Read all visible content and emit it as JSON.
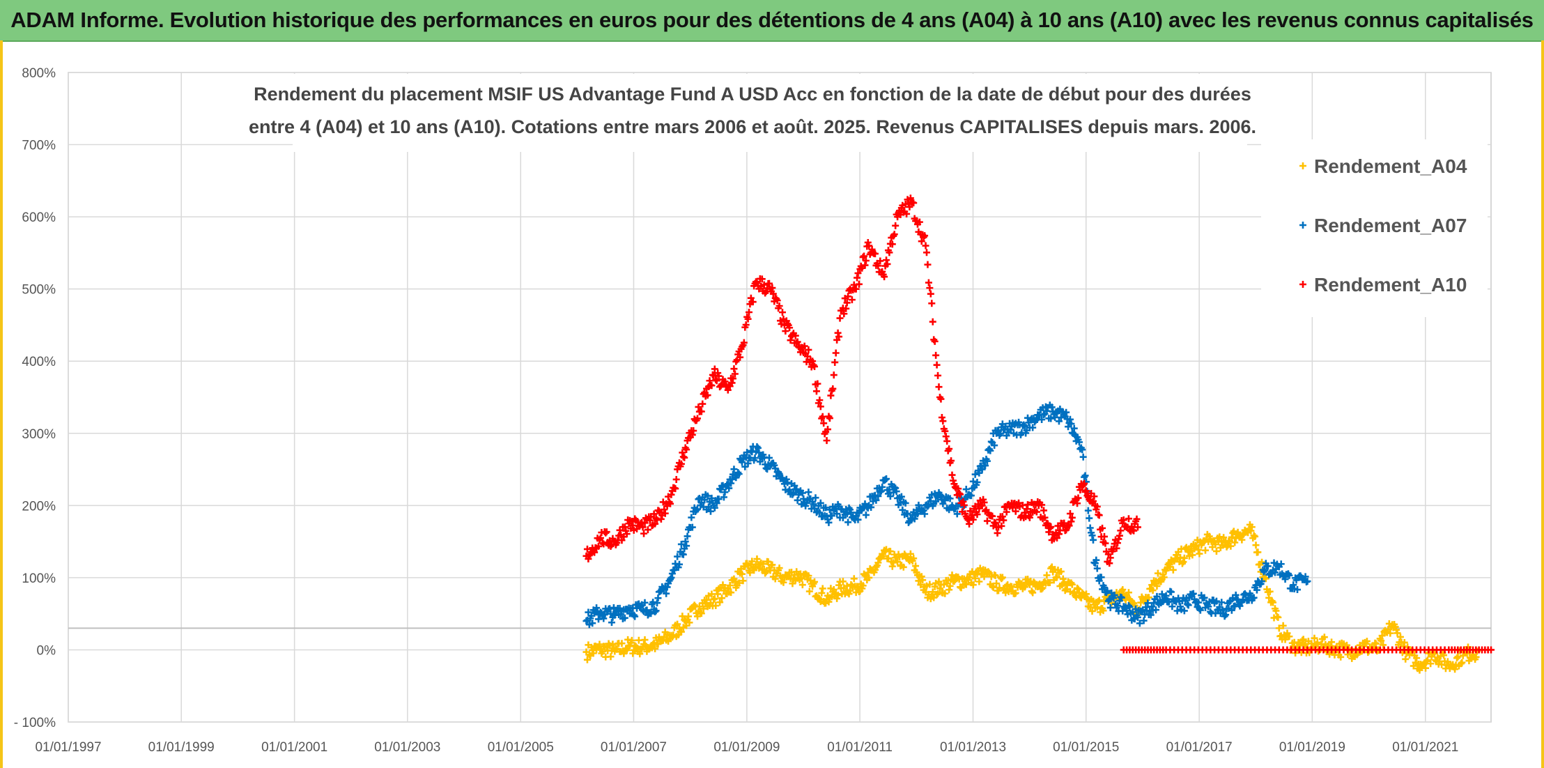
{
  "banner": {
    "title": "ADAM Informe. Evolution historique des performances en euros pour des détentions de 4 ans (A04) à 10 ans (A10) avec les revenus connus capitalisés"
  },
  "colors": {
    "banner_bg": "#7fc97f",
    "A04": "#ffc000",
    "A07": "#0070c0",
    "A10": "#ff0000",
    "grid": "#d9d9d9"
  },
  "chart_data": {
    "type": "scatter",
    "title_lines": [
      "Rendement du placement MSIF US Advantage Fund A USD Acc en fonction de la date de début pour des durées",
      "entre 4 (A04) et 10 ans (A10). Cotations entre mars 2006 et août. 2025. Revenus CAPITALISES depuis mars. 2006."
    ],
    "xlabel": "",
    "ylabel": "",
    "x_axis_type": "date",
    "x_range": [
      "1997-01-01",
      "2022-03-01"
    ],
    "x_tick_labels": [
      "01/01/1997",
      "01/01/1999",
      "01/01/2001",
      "01/01/2003",
      "01/01/2005",
      "01/01/2007",
      "01/01/2009",
      "01/01/2011",
      "01/01/2013",
      "01/01/2015",
      "01/01/2017",
      "01/01/2019",
      "01/01/2021"
    ],
    "y_range": [
      -100,
      800
    ],
    "y_unit": "%",
    "y_tick_labels": [
      "- 100%",
      "0%",
      "100%",
      "200%",
      "300%",
      "400%",
      "500%",
      "600%",
      "700%",
      "800%"
    ],
    "grid": true,
    "legend_position": "top-right",
    "legend": [
      "Rendement_A04",
      "Rendement_A07",
      "Rendement_A10"
    ],
    "marker": "+",
    "series": [
      {
        "name": "Rendement_A04",
        "color": "#ffc000",
        "points": [
          [
            "2006-03-01",
            -3
          ],
          [
            "2006-06-01",
            1
          ],
          [
            "2006-09-01",
            -2
          ],
          [
            "2006-12-01",
            5
          ],
          [
            "2007-03-01",
            4
          ],
          [
            "2007-06-01",
            8
          ],
          [
            "2007-09-01",
            20
          ],
          [
            "2007-12-01",
            40
          ],
          [
            "2008-03-01",
            60
          ],
          [
            "2008-06-01",
            70
          ],
          [
            "2008-09-01",
            85
          ],
          [
            "2008-12-01",
            105
          ],
          [
            "2009-03-01",
            118
          ],
          [
            "2009-06-01",
            110
          ],
          [
            "2009-09-01",
            100
          ],
          [
            "2009-12-01",
            104
          ],
          [
            "2010-03-01",
            88
          ],
          [
            "2010-06-01",
            70
          ],
          [
            "2010-09-01",
            85
          ],
          [
            "2010-12-01",
            88
          ],
          [
            "2011-03-01",
            100
          ],
          [
            "2011-06-01",
            130
          ],
          [
            "2011-09-01",
            122
          ],
          [
            "2011-12-01",
            125
          ],
          [
            "2012-03-01",
            80
          ],
          [
            "2012-06-01",
            85
          ],
          [
            "2012-09-01",
            95
          ],
          [
            "2012-12-01",
            97
          ],
          [
            "2013-03-01",
            105
          ],
          [
            "2013-06-01",
            92
          ],
          [
            "2013-09-01",
            88
          ],
          [
            "2013-12-01",
            87
          ],
          [
            "2014-03-01",
            90
          ],
          [
            "2014-06-01",
            108
          ],
          [
            "2014-09-01",
            90
          ],
          [
            "2014-12-01",
            72
          ],
          [
            "2015-03-01",
            58
          ],
          [
            "2015-06-01",
            70
          ],
          [
            "2015-09-01",
            78
          ],
          [
            "2015-12-01",
            55
          ],
          [
            "2016-03-01",
            90
          ],
          [
            "2016-06-01",
            110
          ],
          [
            "2016-09-01",
            128
          ],
          [
            "2016-12-01",
            140
          ],
          [
            "2017-03-01",
            150
          ],
          [
            "2017-06-01",
            145
          ],
          [
            "2017-09-01",
            160
          ],
          [
            "2017-12-01",
            165
          ],
          [
            "2018-03-01",
            100
          ],
          [
            "2018-06-01",
            30
          ],
          [
            "2018-09-01",
            5
          ],
          [
            "2018-12-01",
            3
          ],
          [
            "2019-03-01",
            8
          ],
          [
            "2019-06-01",
            2
          ],
          [
            "2019-09-01",
            -2
          ],
          [
            "2019-12-01",
            5
          ],
          [
            "2020-03-01",
            0
          ],
          [
            "2020-06-01",
            35
          ],
          [
            "2020-09-01",
            -5
          ],
          [
            "2020-12-01",
            -20
          ],
          [
            "2021-03-01",
            -5
          ],
          [
            "2021-06-01",
            -22
          ],
          [
            "2021-09-01",
            -8
          ],
          [
            "2021-12-01",
            -2
          ]
        ]
      },
      {
        "name": "Rendement_A07",
        "color": "#0070c0",
        "points": [
          [
            "2006-03-01",
            40
          ],
          [
            "2006-06-01",
            52
          ],
          [
            "2006-09-01",
            48
          ],
          [
            "2006-12-01",
            58
          ],
          [
            "2007-03-01",
            55
          ],
          [
            "2007-06-01",
            65
          ],
          [
            "2007-09-01",
            100
          ],
          [
            "2007-12-01",
            150
          ],
          [
            "2008-03-01",
            210
          ],
          [
            "2008-06-01",
            200
          ],
          [
            "2008-09-01",
            230
          ],
          [
            "2008-12-01",
            260
          ],
          [
            "2009-03-01",
            275
          ],
          [
            "2009-06-01",
            255
          ],
          [
            "2009-09-01",
            230
          ],
          [
            "2009-12-01",
            215
          ],
          [
            "2010-03-01",
            205
          ],
          [
            "2010-06-01",
            185
          ],
          [
            "2010-09-01",
            195
          ],
          [
            "2010-12-01",
            180
          ],
          [
            "2011-03-01",
            200
          ],
          [
            "2011-06-01",
            235
          ],
          [
            "2011-09-01",
            210
          ],
          [
            "2011-12-01",
            180
          ],
          [
            "2012-03-01",
            200
          ],
          [
            "2012-06-01",
            215
          ],
          [
            "2012-09-01",
            195
          ],
          [
            "2012-12-01",
            215
          ],
          [
            "2013-03-01",
            250
          ],
          [
            "2013-06-01",
            300
          ],
          [
            "2013-09-01",
            305
          ],
          [
            "2013-12-01",
            310
          ],
          [
            "2014-03-01",
            325
          ],
          [
            "2014-06-01",
            330
          ],
          [
            "2014-09-01",
            320
          ],
          [
            "2014-12-01",
            280
          ],
          [
            "2015-03-01",
            120
          ],
          [
            "2015-06-01",
            70
          ],
          [
            "2015-09-01",
            60
          ],
          [
            "2015-12-01",
            45
          ],
          [
            "2016-03-01",
            60
          ],
          [
            "2016-06-01",
            75
          ],
          [
            "2016-09-01",
            60
          ],
          [
            "2016-12-01",
            70
          ],
          [
            "2017-03-01",
            60
          ],
          [
            "2017-06-01",
            55
          ],
          [
            "2017-09-01",
            70
          ],
          [
            "2017-12-01",
            75
          ],
          [
            "2018-03-01",
            110
          ],
          [
            "2018-06-01",
            115
          ],
          [
            "2018-09-01",
            90
          ],
          [
            "2018-12-01",
            95
          ]
        ]
      },
      {
        "name": "Rendement_A10",
        "color": "#ff0000",
        "points": [
          [
            "2006-03-01",
            130
          ],
          [
            "2006-06-01",
            155
          ],
          [
            "2006-09-01",
            150
          ],
          [
            "2006-12-01",
            175
          ],
          [
            "2007-03-01",
            170
          ],
          [
            "2007-06-01",
            180
          ],
          [
            "2007-09-01",
            215
          ],
          [
            "2007-12-01",
            280
          ],
          [
            "2008-03-01",
            330
          ],
          [
            "2008-06-01",
            380
          ],
          [
            "2008-09-01",
            360
          ],
          [
            "2008-12-01",
            420
          ],
          [
            "2009-03-01",
            510
          ],
          [
            "2009-06-01",
            500
          ],
          [
            "2009-09-01",
            450
          ],
          [
            "2009-12-01",
            420
          ],
          [
            "2010-03-01",
            400
          ],
          [
            "2010-06-01",
            290
          ],
          [
            "2010-09-01",
            470
          ],
          [
            "2010-12-01",
            500
          ],
          [
            "2011-03-01",
            560
          ],
          [
            "2011-06-01",
            520
          ],
          [
            "2011-09-01",
            600
          ],
          [
            "2011-12-01",
            620
          ],
          [
            "2012-03-01",
            560
          ],
          [
            "2012-06-01",
            350
          ],
          [
            "2012-09-01",
            230
          ],
          [
            "2012-12-01",
            180
          ],
          [
            "2013-03-01",
            200
          ],
          [
            "2013-06-01",
            170
          ],
          [
            "2013-09-01",
            200
          ],
          [
            "2013-12-01",
            190
          ],
          [
            "2014-03-01",
            200
          ],
          [
            "2014-06-01",
            160
          ],
          [
            "2014-09-01",
            170
          ],
          [
            "2014-12-01",
            230
          ],
          [
            "2015-03-01",
            200
          ],
          [
            "2015-06-01",
            120
          ],
          [
            "2015-09-01",
            180
          ],
          [
            "2015-12-01",
            170
          ],
          [
            "2015-09-01",
            0
          ],
          [
            "2016-06-01",
            0
          ],
          [
            "2017-06-01",
            0
          ],
          [
            "2018-06-01",
            0
          ],
          [
            "2019-06-01",
            0
          ],
          [
            "2020-06-01",
            0
          ],
          [
            "2021-06-01",
            0
          ],
          [
            "2022-03-01",
            0
          ]
        ]
      }
    ]
  }
}
